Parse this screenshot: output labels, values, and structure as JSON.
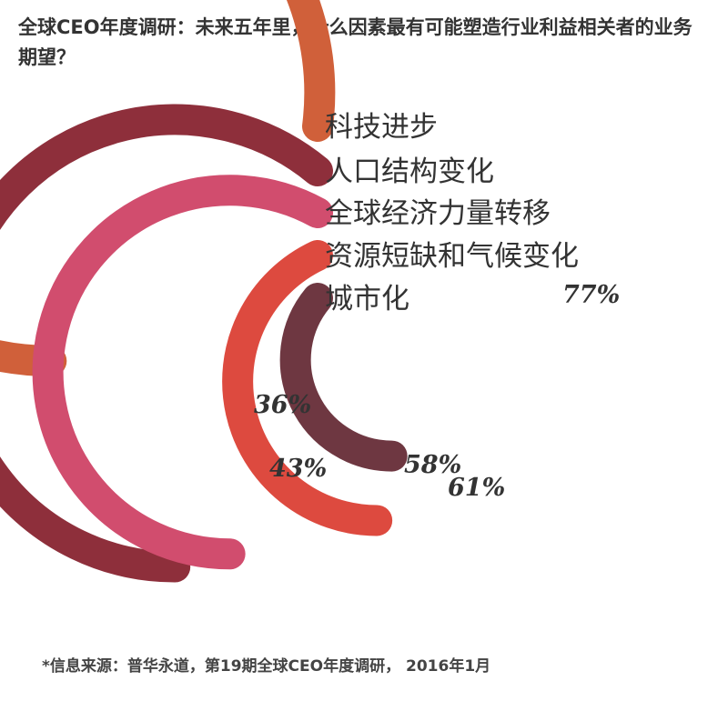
{
  "title": "全球CEO年度调研：未来五年里，什么因素最有可能塑造行业利益相关者的业务期望？",
  "source": "*信息来源：普华永道，第19期全球CEO年度调研， 2016年1月",
  "chart_data": {
    "type": "radial-bar",
    "title": "全球CEO年度调研：未来五年里，什么因素最有可能塑造行业利益相关者的业务期望？",
    "max": 100,
    "categories": [
      "科技进步",
      "人口结构变化",
      "全球经济力量转移",
      "资源短缺和气候变化",
      "城市化"
    ],
    "values": [
      77,
      61,
      58,
      43,
      36
    ],
    "value_labels": [
      "77%",
      "61%",
      "58%",
      "43%",
      "36%"
    ],
    "colors": [
      "#d0603a",
      "#8e2f3b",
      "#d14d6e",
      "#dd4a3f",
      "#6e3741"
    ]
  }
}
